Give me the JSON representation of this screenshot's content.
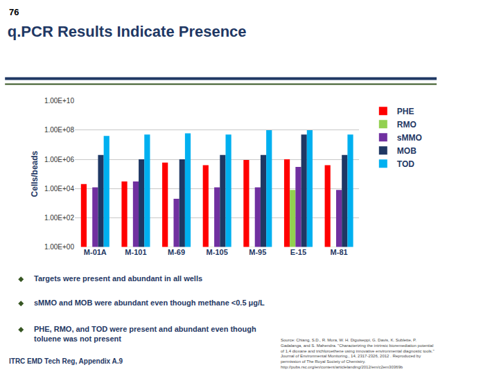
{
  "chart_data": {
    "type": "bar",
    "title": "q.PCR Results Indicate Presence",
    "ylabel": "Cells/beads",
    "annotations": [
      "76",
      "Targets were present and abundant in all wells",
      "sMMO and MOB were abundant even though methane <0.5 μg/L",
      "PHE, RMO, and TOD were present and abundant even though\ntoluene was not present",
      "ITRC EMD Tech Reg, Appendix A.9",
      "Source: Chiang, S.D., R. Mora, W. H. Diguiseppi, G. Davis, K. Sublette, P.\nGadalanga, and S. Mahendra. \"Characterizing the intrinsic bioremediation potential\nof 1,4 dioxane and trichloroethene using innovative environmental diagnostic tools.\"\nJournal of Environmental Monitoring., 14, 2317-2326, 2012 . Reproduced by\npermission of The Royal Society of Chemistry.\nhttp://pubs.rsc.org/en/content/articlelanding/2012/em/c2em30369b"
    ],
    "categories": [
      "M-01A",
      "M-101",
      "M-69",
      "M-105",
      "M-95",
      "E-15",
      "M-81"
    ],
    "series": [
      {
        "name": "PHE",
        "color": "#FF0000",
        "values": [
          20000,
          30000,
          600000,
          400000,
          900000,
          1000000,
          400000
        ]
      },
      {
        "name": "RMO",
        "color": "#92D050",
        "values": [
          1.0,
          1.0,
          1.0,
          1.0,
          1.0,
          8000,
          1.0
        ]
      },
      {
        "name": "sMMO",
        "color": "#7030A0",
        "values": [
          12000,
          30000,
          2000,
          12000,
          12000,
          300000,
          8000
        ]
      },
      {
        "name": "MOB",
        "color": "#1F3864",
        "values": [
          2000000,
          1000000,
          1000000,
          2000000,
          2000000,
          50000000,
          2000000
        ]
      },
      {
        "name": "TOD",
        "color": "#00B0F0",
        "values": [
          40000000,
          50000000,
          60000000,
          50000000,
          100000000,
          100000000,
          50000000
        ]
      }
    ],
    "log": "y",
    "ylim": [
      1,
      10000000000
    ],
    "yticks": [
      {
        "value": 1,
        "label": "1.00E+00"
      },
      {
        "value": 100,
        "label": "1.00E+02"
      },
      {
        "value": 10000,
        "label": "1.00E+04"
      },
      {
        "value": 1000000,
        "label": "1.00E+06"
      },
      {
        "value": 100000000,
        "label": "1.00E+08"
      },
      {
        "value": 10000000000,
        "label": "1.00E+10"
      }
    ],
    "grid": true,
    "legend": "right"
  }
}
